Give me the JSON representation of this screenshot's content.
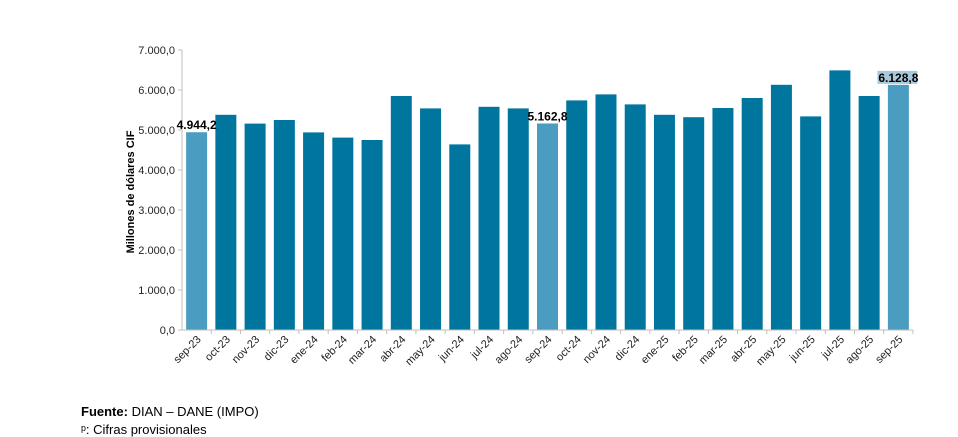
{
  "chart_data": {
    "type": "bar",
    "ylabel": "Millones de dólares CIF",
    "ylim": [
      0,
      7000
    ],
    "y_ticks": [
      "0,0",
      "1.000,0",
      "2.000,0",
      "3.000,0",
      "4.000,0",
      "5.000,0",
      "6.000,0",
      "7.000,0"
    ],
    "categories": [
      "sep-23",
      "oct-23",
      "nov-23",
      "dic-23",
      "ene-24",
      "feb-24",
      "mar-24",
      "abr-24",
      "may-24",
      "jun-24",
      "jul-24",
      "ago-24",
      "sep-24",
      "oct-24",
      "nov-24",
      "dic-24",
      "ene-25",
      "feb-25",
      "mar-25",
      "abr-25",
      "may-25",
      "jun-25",
      "jul-25",
      "ago-25",
      "sep-25"
    ],
    "values": [
      4944.2,
      5380,
      5160,
      5250,
      4940,
      4810,
      4750,
      5850,
      5540,
      4640,
      5580,
      5540,
      5162.8,
      5740,
      5890,
      5640,
      5380,
      5320,
      5550,
      5800,
      6130,
      5340,
      6490,
      5850,
      6128.8
    ],
    "highlighted": [
      "sep-23",
      "sep-24",
      "sep-25"
    ],
    "data_labels": [
      {
        "category": "sep-23",
        "text": "4.944,2"
      },
      {
        "category": "sep-24",
        "text": "5.162,8"
      },
      {
        "category": "sep-25",
        "text": "6.128,8"
      }
    ],
    "colors": {
      "bar": "#00769F",
      "highlight": "#4A9DC0",
      "label_bg": "#A8C9DC"
    }
  },
  "footer": {
    "source_label": "Fuente:",
    "source_text": " DIAN – DANE (IMPO)",
    "note_text": "ᵖ: Cifras provisionales"
  }
}
